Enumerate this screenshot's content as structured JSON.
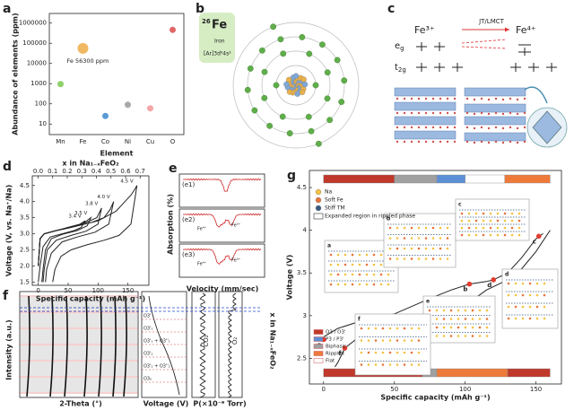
{
  "panels": {
    "b": {
      "label": "b",
      "atomic_number": "26",
      "symbol": "Fe",
      "name": "Iron",
      "configuration": "[Ar]3d⁶4s²"
    },
    "c": {
      "label": "c",
      "ion_left": "Fe³⁺",
      "ion_right": "Fe⁴⁺",
      "process": "JT/LMCT",
      "eg": {
        "main": "e",
        "sub": "g"
      },
      "t2g": {
        "main": "t",
        "sub": "2g"
      }
    },
    "e": {
      "label": "e",
      "ylabel": "Absorption (%)",
      "xlabel": "Velocity (mm/sec)",
      "subplots": [
        "(e1)",
        "(e2)",
        "(e3)"
      ],
      "fe3": "Fe³⁺",
      "fe4": "Fe⁴⁺"
    },
    "f": {
      "label": "f",
      "ylabel": "Intensity (a.u.)",
      "xlabel": "2-Theta (°)",
      "voltage_label": "Voltage (V)",
      "pressure_label": "P(×10⁻⁹ Torr)",
      "x_label": "x in Na₁₋ₓFeO₂",
      "gas_1": "CO₂",
      "gas_2": "O₂",
      "phases": [
        "O3'",
        "O3'₁",
        "O3'₁ + O3''₁",
        "O3'₂",
        "O3'₂ + O3''₂",
        "O3₀"
      ]
    }
  },
  "chart_data": [
    {
      "label": "a",
      "type": "scatter",
      "ylabel": "Abundance of elements (ppm)",
      "xlabel": "Element",
      "categories": [
        "Mn",
        "Fe",
        "Co",
        "Ni",
        "Cu",
        "O"
      ],
      "values": [
        950,
        56300,
        25,
        90,
        60,
        461000
      ],
      "colors": [
        "#8fd16a",
        "#f0b860",
        "#5b9bd5",
        "#a9a9a9",
        "#f4a6a6",
        "#e06666"
      ],
      "marker_sizes": [
        3.5,
        6,
        3.5,
        3.5,
        3.5,
        3.5
      ],
      "annotation": "Fe 56300 ppm",
      "log_y": true,
      "ylim": [
        3,
        3000000
      ],
      "yticks": [
        10,
        100,
        1000,
        10000,
        100000,
        1000000
      ]
    },
    {
      "label": "d",
      "type": "line",
      "xlabel": "Specific capacity (mAh g⁻¹)",
      "x2label": "x in Na₁₋ₓFeO₂",
      "ylabel": "Voltage (V, vs. Na⁺/Na)",
      "color": "#222",
      "xlim": [
        -10,
        185
      ],
      "xticks": [
        0,
        50,
        100,
        150
      ],
      "x2lim": [
        -0.04,
        0.76
      ],
      "x2ticks": [
        {
          "value": 0,
          "label": "0.0"
        },
        0.1,
        0.2,
        0.3,
        0.4,
        0.5,
        0.6,
        0.7
      ],
      "ylim": [
        1.4,
        4.8
      ],
      "yticks": [
        1.5,
        {
          "value": 2,
          "label": "2.0"
        },
        2.5,
        {
          "value": 3,
          "label": "3.0"
        },
        3.5,
        {
          "value": 4,
          "label": "4.0"
        },
        4.5
      ],
      "series": [
        {
          "name": "3.4 V",
          "x": [
            0,
            3,
            10,
            30,
            50,
            70,
            78,
            72,
            60,
            40,
            20,
            8,
            3,
            0
          ],
          "values": [
            2.0,
            2.85,
            3.0,
            3.1,
            3.2,
            3.3,
            3.4,
            3.2,
            3.1,
            3.0,
            2.9,
            2.6,
            2.0,
            1.5
          ]
        },
        {
          "name": "3.5 V",
          "x": [
            0,
            3,
            10,
            30,
            55,
            75,
            88,
            82,
            65,
            40,
            22,
            12,
            8,
            6
          ],
          "values": [
            2.0,
            2.85,
            3.0,
            3.1,
            3.2,
            3.32,
            3.5,
            3.25,
            3.1,
            2.98,
            2.85,
            2.5,
            1.9,
            1.5
          ]
        },
        {
          "name": "3.8 V",
          "x": [
            0,
            3,
            10,
            30,
            55,
            80,
            98,
            106,
            100,
            80,
            55,
            30,
            15,
            10,
            8
          ],
          "values": [
            2.0,
            2.85,
            3.0,
            3.1,
            3.2,
            3.35,
            3.5,
            3.8,
            3.3,
            3.08,
            2.95,
            2.8,
            2.5,
            1.9,
            1.5
          ]
        },
        {
          "name": "4.0 V",
          "x": [
            0,
            3,
            10,
            30,
            60,
            90,
            110,
            120,
            126,
            118,
            95,
            65,
            40,
            22,
            14,
            12
          ],
          "values": [
            2.0,
            2.85,
            3.0,
            3.1,
            3.22,
            3.36,
            3.5,
            3.75,
            4.0,
            3.3,
            3.05,
            2.9,
            2.75,
            2.4,
            1.9,
            1.5
          ]
        },
        {
          "name": "4.5 V",
          "x": [
            0,
            3,
            10,
            30,
            60,
            100,
            130,
            145,
            155,
            162,
            165,
            155,
            135,
            110,
            80,
            55,
            38,
            28,
            24
          ],
          "values": [
            2.0,
            2.85,
            3.0,
            3.1,
            3.22,
            3.4,
            3.7,
            4.0,
            4.2,
            4.4,
            4.5,
            3.3,
            2.95,
            2.8,
            2.65,
            2.5,
            2.3,
            1.9,
            1.5
          ]
        }
      ]
    },
    {
      "label": "g",
      "type": "line",
      "xlabel": "Specific capacity (mAh g⁻¹)",
      "ylabel": "Voltage (V)",
      "color": "#222",
      "xlim": [
        -10,
        168
      ],
      "xticks": [
        0,
        50,
        100,
        150
      ],
      "ylim": [
        2.2,
        4.7
      ],
      "yticks": [
        2.5,
        3,
        3.5,
        4,
        4.5
      ],
      "series": [
        {
          "x": [
            0,
            10,
            25,
            50,
            75,
            90,
            103,
            115,
            120,
            130,
            140,
            150,
            155
          ],
          "values": [
            2.75,
            2.85,
            2.93,
            3.02,
            3.2,
            3.3,
            3.37,
            3.4,
            3.42,
            3.5,
            3.68,
            3.9,
            3.96
          ]
        },
        {
          "x": [
            160,
            150,
            140,
            130,
            115,
            100,
            80,
            60,
            40,
            25,
            15,
            10,
            8
          ],
          "values": [
            4.0,
            3.75,
            3.55,
            3.42,
            3.3,
            3.12,
            3.02,
            2.95,
            2.88,
            2.75,
            2.62,
            2.45,
            2.4
          ]
        }
      ],
      "points": [
        {
          "label": "a",
          "x": 0,
          "y": 2.72
        },
        {
          "label": "b",
          "x": 103,
          "y": 3.37
        },
        {
          "label": "c",
          "x": 152,
          "y": 3.93
        },
        {
          "label": "d",
          "x": 120,
          "y": 3.42
        },
        {
          "label": "e",
          "x": 75,
          "y": 3.2
        },
        {
          "label": "f",
          "x": 15,
          "y": 2.62
        }
      ],
      "point_color": "#e03c31",
      "atom_legend": [
        {
          "name": "Na",
          "color": "#f5c242"
        },
        {
          "name": "Soft Fe",
          "color": "#e8743b"
        },
        {
          "name": "Stiff TM",
          "color": "#3a5a80"
        }
      ],
      "region_legend": "Expanded region in rippled phase",
      "phase_legend": [
        {
          "name": "O3 / O3'",
          "color": "#c0392b"
        },
        {
          "name": "P3 / P3'",
          "color": "#5b8fd6"
        },
        {
          "name": "Biphasic",
          "color": "#a0a0a0"
        },
        {
          "name": "Rippled",
          "color": "#ee7a3a"
        },
        {
          "name": "Flat",
          "color": "#ffffff"
        }
      ],
      "phase_bars": {
        "top": [
          {
            "from": 0,
            "to": 50,
            "color": "#c0392b"
          },
          {
            "from": 50,
            "to": 80,
            "color": "#a0a0a0"
          },
          {
            "from": 80,
            "to": 100,
            "color": "#5b8fd6"
          },
          {
            "from": 100,
            "to": 128,
            "color": "#ffffff"
          },
          {
            "from": 128,
            "to": 160,
            "color": "#ee7a3a"
          }
        ],
        "bottom": [
          {
            "from": 0,
            "to": 70,
            "color": "#c0392b"
          },
          {
            "from": 70,
            "to": 80,
            "color": "#a0a0a0"
          },
          {
            "from": 80,
            "to": 130,
            "color": "#ee7a3a"
          },
          {
            "from": 130,
            "to": 160,
            "color": "#c0392b"
          }
        ]
      }
    }
  ]
}
